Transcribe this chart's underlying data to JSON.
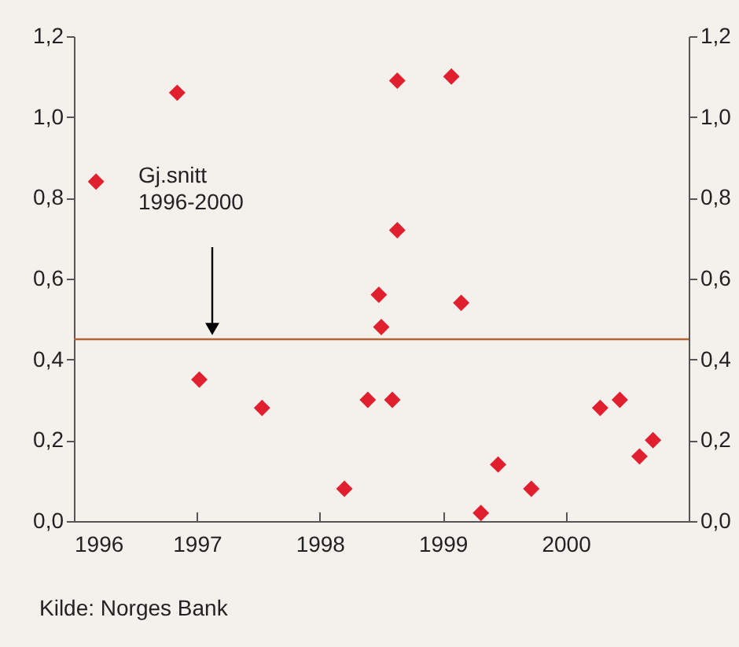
{
  "chart_data": {
    "type": "scatter",
    "x": [
      1996.18,
      1996.84,
      1997.02,
      1997.53,
      1998.2,
      1998.39,
      1998.48,
      1998.5,
      1998.59,
      1998.63,
      1998.63,
      1999.07,
      1999.15,
      1999.31,
      1999.45,
      1999.72,
      2000.28,
      2000.44,
      2000.6,
      2000.71
    ],
    "series": [
      {
        "color": "#e0202f",
        "values": [
          0.84,
          1.06,
          0.35,
          0.28,
          0.08,
          0.3,
          0.56,
          0.48,
          0.3,
          0.72,
          1.09,
          1.1,
          0.54,
          0.02,
          0.14,
          0.08,
          0.28,
          0.3,
          0.16,
          0.2
        ]
      }
    ],
    "marker": "diamond",
    "grid": false,
    "xlim": [
      1996,
      2001
    ],
    "xticks": [
      1996,
      1997,
      1998,
      1999,
      2000
    ],
    "ylim": [
      0,
      1.2
    ],
    "yticks": [
      {
        "value": 0,
        "label": "0,0"
      },
      {
        "value": 0.2,
        "label": "0,2"
      },
      {
        "value": 0.4,
        "label": "0,4"
      },
      {
        "value": 0.6,
        "label": "0,6"
      },
      {
        "value": 0.8,
        "label": "0,8"
      },
      {
        "value": 1.0,
        "label": "1,0"
      },
      {
        "value": 1.2,
        "label": "1,2"
      }
    ],
    "y2lim": [
      0,
      1.2
    ],
    "y2ticks": [
      {
        "value": 0,
        "label": "0,0"
      },
      {
        "value": 0.2,
        "label": "0,2"
      },
      {
        "value": 0.4,
        "label": "0,4"
      },
      {
        "value": 0.6,
        "label": "0,6"
      },
      {
        "value": 0.8,
        "label": "0,8"
      },
      {
        "value": 1.0,
        "label": "1,0"
      },
      {
        "value": 1.2,
        "label": "1,2"
      }
    ],
    "ref_lines": [
      {
        "axis": "y",
        "value": 0.45,
        "color": "#b0683a"
      }
    ],
    "annotations": [
      "Gj.snitt\n1996-2000",
      "Kilde: Norges Bank"
    ]
  }
}
